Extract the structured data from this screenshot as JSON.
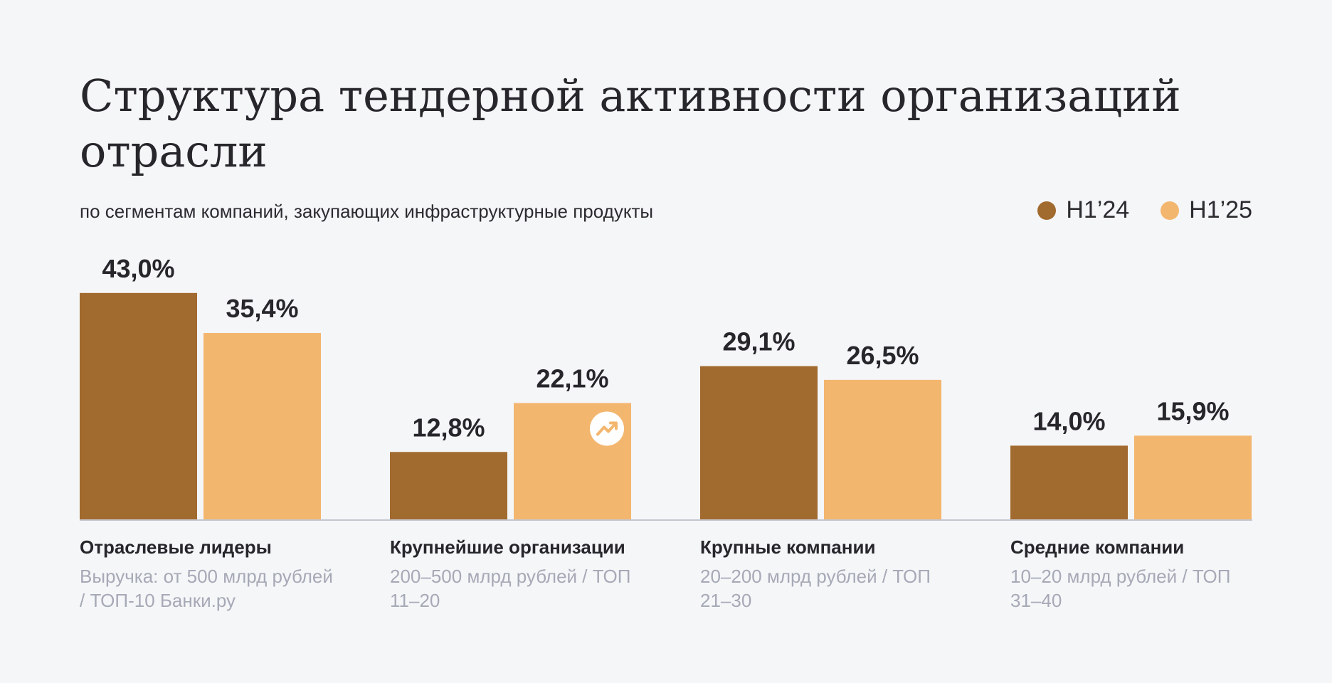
{
  "title": "Структура тендерной активности организаций отрасли",
  "subtitle": "по сегментам компаний, закупающих инфраструктурные продукты",
  "legend": [
    {
      "label": "H1’24",
      "color": "#a16a2e"
    },
    {
      "label": "H1’25",
      "color": "#f3b66e"
    }
  ],
  "growth_icon": "trend-up-icon",
  "chart_data": {
    "type": "bar",
    "title": "Структура тендерной активности организаций отрасли",
    "subtitle": "по сегментам компаний, закупающих инфраструктурные продукты",
    "categories": [
      "Отраслевые лидеры",
      "Крупнейшие организации",
      "Крупные компании",
      "Средние компании"
    ],
    "category_descriptions": [
      "Выручка: от 500 млрд рублей / ТОП-10 Банки.ру",
      "200–500 млрд рублей / ТОП 11–20",
      "20–200 млрд рублей / ТОП 21–30",
      "10–20 млрд рублей / ТОП 31–40"
    ],
    "series": [
      {
        "name": "H1’24",
        "color": "#a16a2e",
        "values": [
          43.0,
          12.8,
          29.1,
          14.0
        ],
        "labels": [
          "43,0%",
          "12,8%",
          "29,1%",
          "14,0%"
        ]
      },
      {
        "name": "H1’25",
        "color": "#f3b66e",
        "values": [
          35.4,
          22.1,
          26.5,
          15.9
        ],
        "labels": [
          "35,4%",
          "22,1%",
          "26,5%",
          "15,9%"
        ]
      }
    ],
    "ylim": [
      0,
      50
    ],
    "grid": false,
    "legend_position": "top-right",
    "annotations": [
      {
        "category_index": 1,
        "series_index": 1,
        "icon": "trend-up-icon"
      }
    ]
  }
}
